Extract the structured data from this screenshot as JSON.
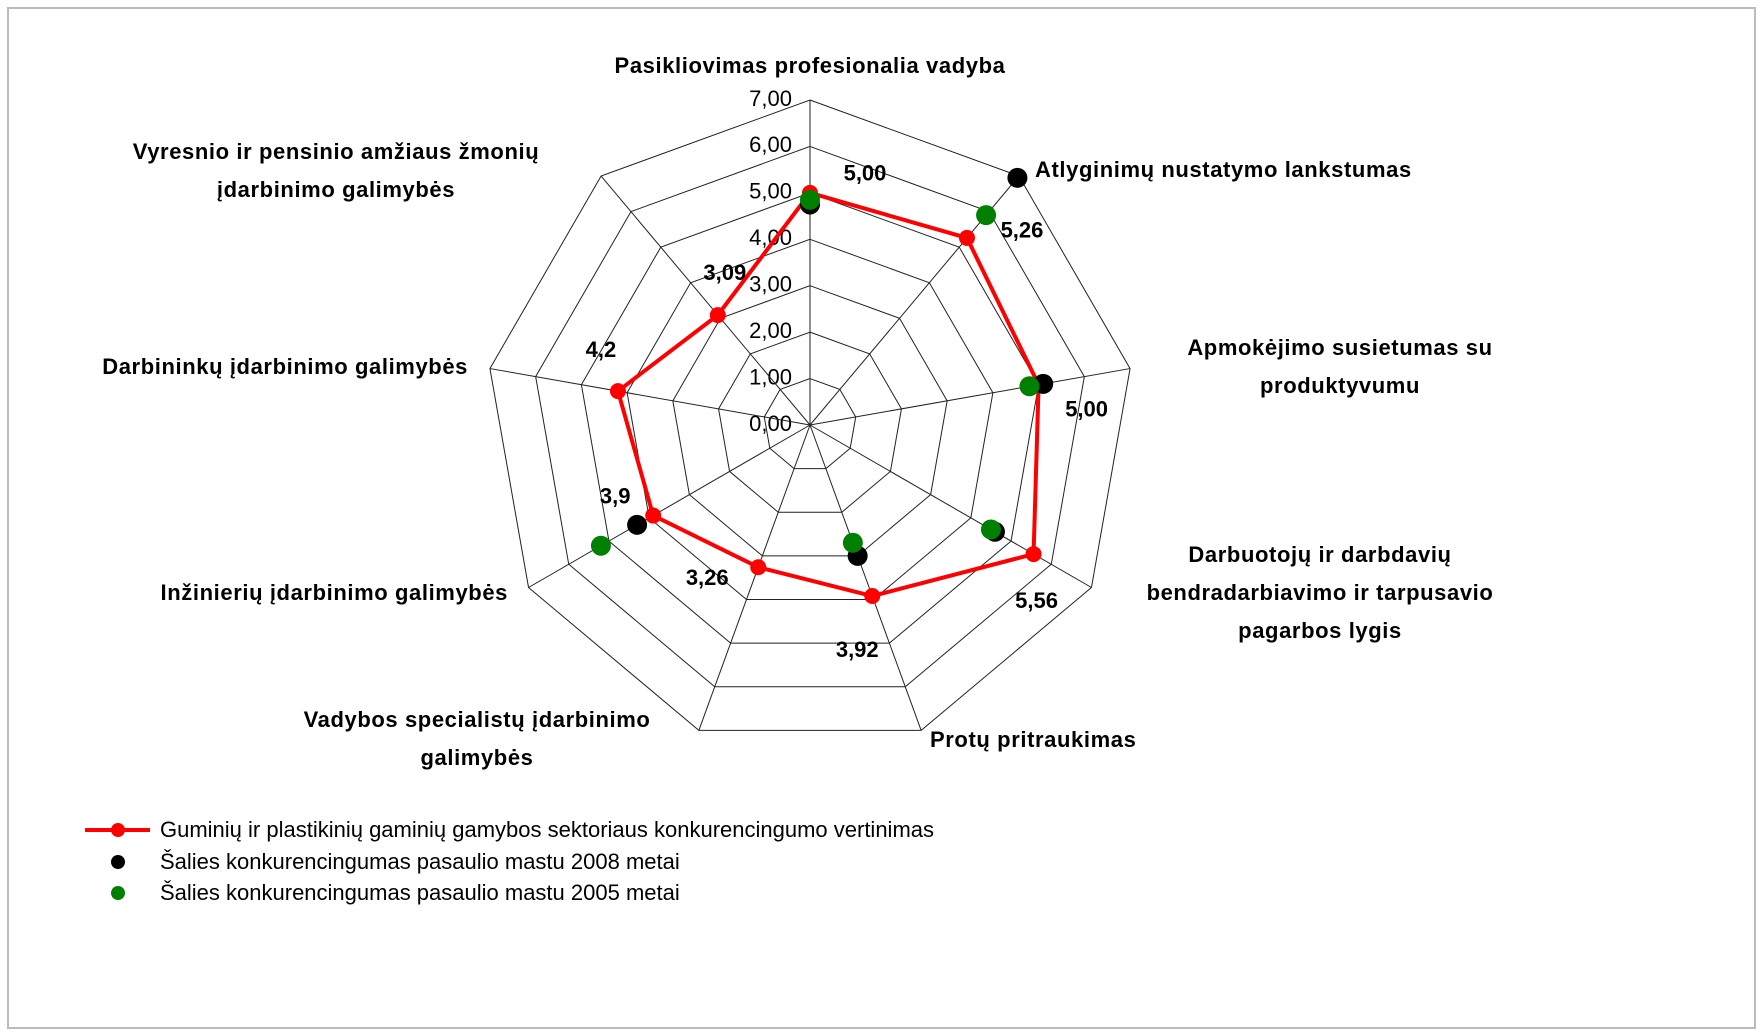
{
  "chart_data": {
    "type": "radar",
    "categories": [
      "Pasikliovimas profesionalia vadyba",
      "Atlyginimų nustatymo lankstumas",
      "Apmokėjimo susietumas su produktyvumu",
      "Darbuotojų ir darbdavių bendradarbiavimo ir tarpusavio pagarbos lygis",
      "Protų pritraukimas",
      "Vadybos specialistų įdarbinimo galimybės",
      "Inžinierių įdarbinimo galimybės",
      "Darbininkų įdarbinimo galimybės",
      "Vyresnio ir pensinio amžiaus žmonių įdarbinimo galimybės"
    ],
    "series": [
      {
        "name": "Guminių ir plastikinių gaminių gamybos sektoriaus konkurencingumo vertinimas",
        "color": "#ff0000",
        "line": true,
        "values": [
          5.0,
          5.26,
          5.0,
          5.56,
          3.92,
          3.26,
          3.9,
          4.2,
          3.09
        ],
        "value_labels": [
          "5,00",
          "5,26",
          "5,00",
          "5,56",
          "3,92",
          "3,26",
          "3,9",
          "4,2",
          "3,09"
        ]
      },
      {
        "name": "Šalies konkurencingumas pasaulio mastu 2008 metai",
        "color": "#000000",
        "line": false,
        "values": [
          4.75,
          6.95,
          5.1,
          4.6,
          3.0,
          null,
          4.3,
          null,
          null
        ]
      },
      {
        "name": "Šalies konkurencingumas pasaulio mastu 2005 metai",
        "color": "#008000",
        "line": false,
        "values": [
          4.85,
          5.9,
          4.8,
          4.5,
          2.7,
          null,
          5.2,
          null,
          null
        ]
      }
    ],
    "ylim": [
      0,
      7
    ],
    "yticks": [
      {
        "value": 0,
        "label": "0,00"
      },
      {
        "value": 1,
        "label": "1,00"
      },
      {
        "value": 2,
        "label": "2,00"
      },
      {
        "value": 3,
        "label": "3,00"
      },
      {
        "value": 4,
        "label": "4,00"
      },
      {
        "value": 5,
        "label": "5,00"
      },
      {
        "value": 6,
        "label": "6,00"
      },
      {
        "value": 7,
        "label": "7,00"
      }
    ],
    "grid": true
  }
}
